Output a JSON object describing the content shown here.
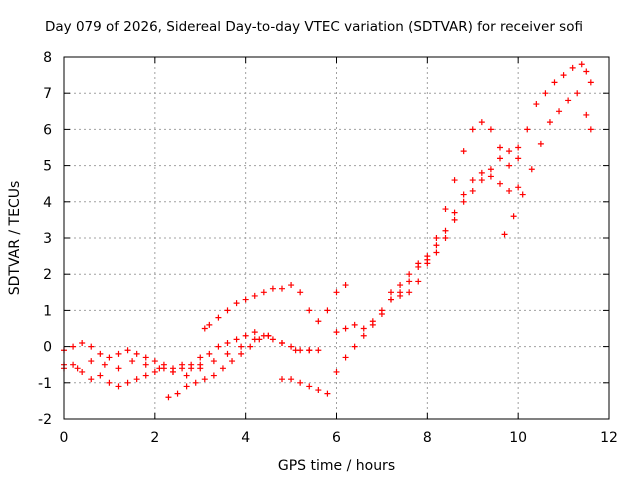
{
  "chart_data": {
    "type": "scatter",
    "title": "Day 079 of 2026, Sidereal Day-to-day VTEC variation (SDTVAR) for receiver sofi",
    "xlabel": "GPS time / hours",
    "ylabel": "SDTVAR / TECUs",
    "xlim": [
      0,
      12
    ],
    "ylim": [
      -2,
      8
    ],
    "xticks": [
      "0",
      "2",
      "4",
      "6",
      "8",
      "10",
      "12"
    ],
    "yticks": [
      "-2",
      "-1",
      "0",
      "1",
      "2",
      "3",
      "4",
      "5",
      "6",
      "7",
      "8"
    ],
    "grid": true,
    "legend": "none",
    "marker": "+",
    "color": "#ff0000",
    "series": [
      {
        "x": [
          0.0,
          0.2,
          0.4,
          0.6,
          0.8,
          1.0,
          1.2,
          1.4,
          1.6,
          1.8,
          2.0,
          2.2,
          2.4,
          2.6,
          2.8,
          3.0,
          3.1,
          3.2,
          3.4,
          3.6,
          3.8,
          4.0,
          4.2,
          4.4,
          4.6,
          4.8,
          5.0,
          5.2,
          5.4,
          5.6,
          5.8,
          6.0,
          6.2
        ],
        "y": [
          -0.1,
          0.0,
          0.1,
          0.0,
          -0.2,
          -0.3,
          -0.2,
          -0.1,
          -0.2,
          -0.3,
          -0.4,
          -0.5,
          -0.6,
          -0.5,
          -0.6,
          -0.5,
          0.5,
          0.6,
          0.8,
          1.0,
          1.2,
          1.3,
          1.4,
          1.5,
          1.6,
          1.6,
          1.7,
          1.5,
          1.0,
          0.7,
          1.0,
          1.5,
          1.7
        ]
      },
      {
        "x": [
          0.0,
          0.2,
          0.4,
          0.6,
          0.8,
          1.0,
          1.2,
          1.4,
          1.6,
          1.8,
          2.0,
          2.2,
          2.4,
          2.6,
          2.8,
          3.0,
          3.2,
          3.4,
          3.6,
          3.8,
          4.0,
          4.2,
          4.4,
          4.6,
          4.8,
          5.0,
          5.2,
          5.4,
          5.6
        ],
        "y": [
          -0.6,
          -0.5,
          -0.7,
          -0.9,
          -0.8,
          -1.0,
          -1.1,
          -1.0,
          -0.9,
          -0.8,
          -0.7,
          -0.6,
          -0.7,
          -0.6,
          -0.5,
          -0.3,
          -0.2,
          0.0,
          0.1,
          0.2,
          0.3,
          0.4,
          0.3,
          0.2,
          0.1,
          0.0,
          -0.1,
          -0.1,
          -0.1
        ]
      },
      {
        "x": [
          0.0,
          0.3,
          0.6,
          0.9,
          1.2,
          1.5,
          1.8,
          2.1,
          2.4,
          2.7,
          3.0,
          3.3,
          3.6,
          3.9,
          4.2,
          4.5,
          4.8,
          5.1,
          5.4
        ],
        "y": [
          -0.5,
          -0.6,
          -0.4,
          -0.5,
          -0.6,
          -0.4,
          -0.5,
          -0.6,
          -0.7,
          -0.8,
          -0.6,
          -0.4,
          -0.2,
          0.0,
          0.2,
          0.3,
          0.1,
          -0.1,
          -0.1
        ]
      },
      {
        "x": [
          2.3,
          2.5,
          2.7,
          2.9,
          3.1,
          3.3,
          3.5,
          3.7,
          3.9,
          4.1,
          4.3,
          4.5
        ],
        "y": [
          -1.4,
          -1.3,
          -1.1,
          -1.0,
          -0.9,
          -0.8,
          -0.6,
          -0.4,
          -0.2,
          0.0,
          0.2,
          0.3
        ]
      },
      {
        "x": [
          4.8,
          5.0,
          5.2,
          5.4,
          5.6,
          5.8,
          6.0,
          6.2,
          6.4,
          6.6,
          6.8,
          7.0,
          7.2,
          7.4,
          7.6,
          7.8,
          8.0,
          8.2,
          8.4,
          8.6,
          8.8,
          9.0,
          9.2,
          9.4,
          9.6,
          9.8,
          10.0
        ],
        "y": [
          -0.9,
          -0.9,
          -1.0,
          -1.1,
          -1.2,
          -1.3,
          -0.7,
          -0.3,
          0.0,
          0.3,
          0.6,
          0.9,
          1.3,
          1.7,
          2.0,
          2.3,
          2.4,
          2.6,
          3.0,
          3.5,
          4.0,
          4.3,
          4.6,
          4.9,
          5.2,
          5.4,
          5.5
        ]
      },
      {
        "x": [
          6.0,
          6.2,
          6.4,
          6.6,
          6.8,
          7.0,
          7.2,
          7.4,
          7.6,
          7.8,
          8.0,
          8.2,
          8.4,
          8.6,
          8.8,
          9.0,
          9.2,
          9.4,
          9.6,
          9.8,
          10.0
        ],
        "y": [
          0.4,
          0.5,
          0.6,
          0.5,
          0.7,
          1.0,
          1.3,
          1.5,
          1.8,
          2.2,
          2.5,
          2.8,
          3.2,
          3.7,
          4.2,
          4.6,
          4.8,
          4.7,
          4.5,
          4.3,
          4.4
        ]
      },
      {
        "x": [
          7.2,
          7.4,
          7.6,
          7.8,
          8.0,
          8.2,
          8.4,
          8.6,
          8.8,
          9.0,
          9.2,
          9.4,
          9.6,
          9.8,
          10.0,
          10.2,
          10.4,
          10.6,
          10.8,
          11.0,
          11.2,
          11.4,
          11.5,
          11.6
        ],
        "y": [
          1.5,
          1.4,
          1.5,
          1.8,
          2.3,
          3.0,
          3.8,
          4.6,
          5.4,
          6.0,
          6.2,
          6.0,
          5.5,
          5.0,
          5.2,
          6.0,
          6.7,
          7.0,
          7.3,
          7.5,
          7.7,
          7.8,
          7.6,
          7.3
        ]
      },
      {
        "x": [
          9.7,
          9.9,
          10.1,
          10.3,
          10.5,
          10.7,
          10.9,
          11.1,
          11.3,
          11.5,
          11.6
        ],
        "y": [
          3.1,
          3.6,
          4.2,
          4.9,
          5.6,
          6.2,
          6.5,
          6.8,
          7.0,
          6.4,
          6.0
        ]
      }
    ]
  }
}
